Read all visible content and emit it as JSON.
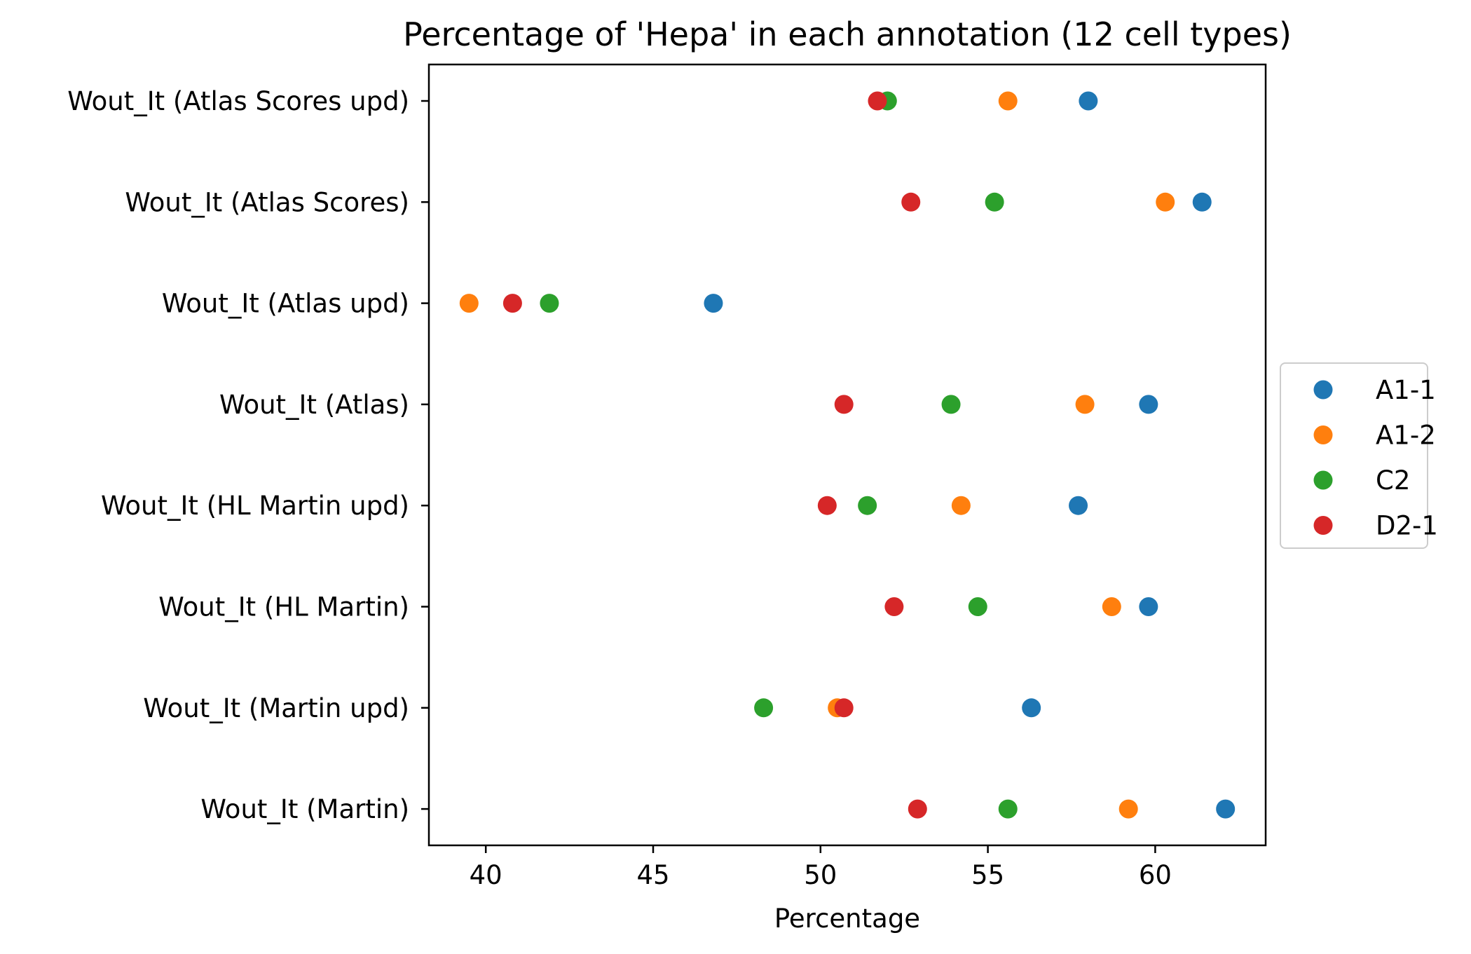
{
  "chart_data": {
    "type": "scatter",
    "title": "Percentage of 'Hepa' in each annotation (12 cell types)",
    "xlabel": "Percentage",
    "ylabel": "",
    "xlim": [
      38.3,
      63.3
    ],
    "xticks": [
      40,
      45,
      50,
      55,
      60
    ],
    "categories": [
      "Wout_It (Atlas Scores upd)",
      "Wout_It (Atlas Scores)",
      "Wout_It (Atlas upd)",
      "Wout_It (Atlas)",
      "Wout_It (HL Martin upd)",
      "Wout_It (HL Martin)",
      "Wout_It (Martin upd)",
      "Wout_It (Martin)"
    ],
    "legend_position": "center-right outside",
    "grid": false,
    "series": [
      {
        "name": "A1-1",
        "color": "#1f77b4",
        "values": [
          58.0,
          61.4,
          46.8,
          59.8,
          57.7,
          59.8,
          56.3,
          62.1
        ]
      },
      {
        "name": "A1-2",
        "color": "#ff7f0e",
        "values": [
          55.6,
          60.3,
          39.5,
          57.9,
          54.2,
          58.7,
          50.5,
          59.2
        ]
      },
      {
        "name": "C2",
        "color": "#2ca02c",
        "values": [
          52.0,
          55.2,
          41.9,
          53.9,
          51.4,
          54.7,
          48.3,
          55.6
        ]
      },
      {
        "name": "D2-1",
        "color": "#d62728",
        "values": [
          51.7,
          52.7,
          40.8,
          50.7,
          50.2,
          52.2,
          50.7,
          52.9
        ]
      }
    ]
  }
}
